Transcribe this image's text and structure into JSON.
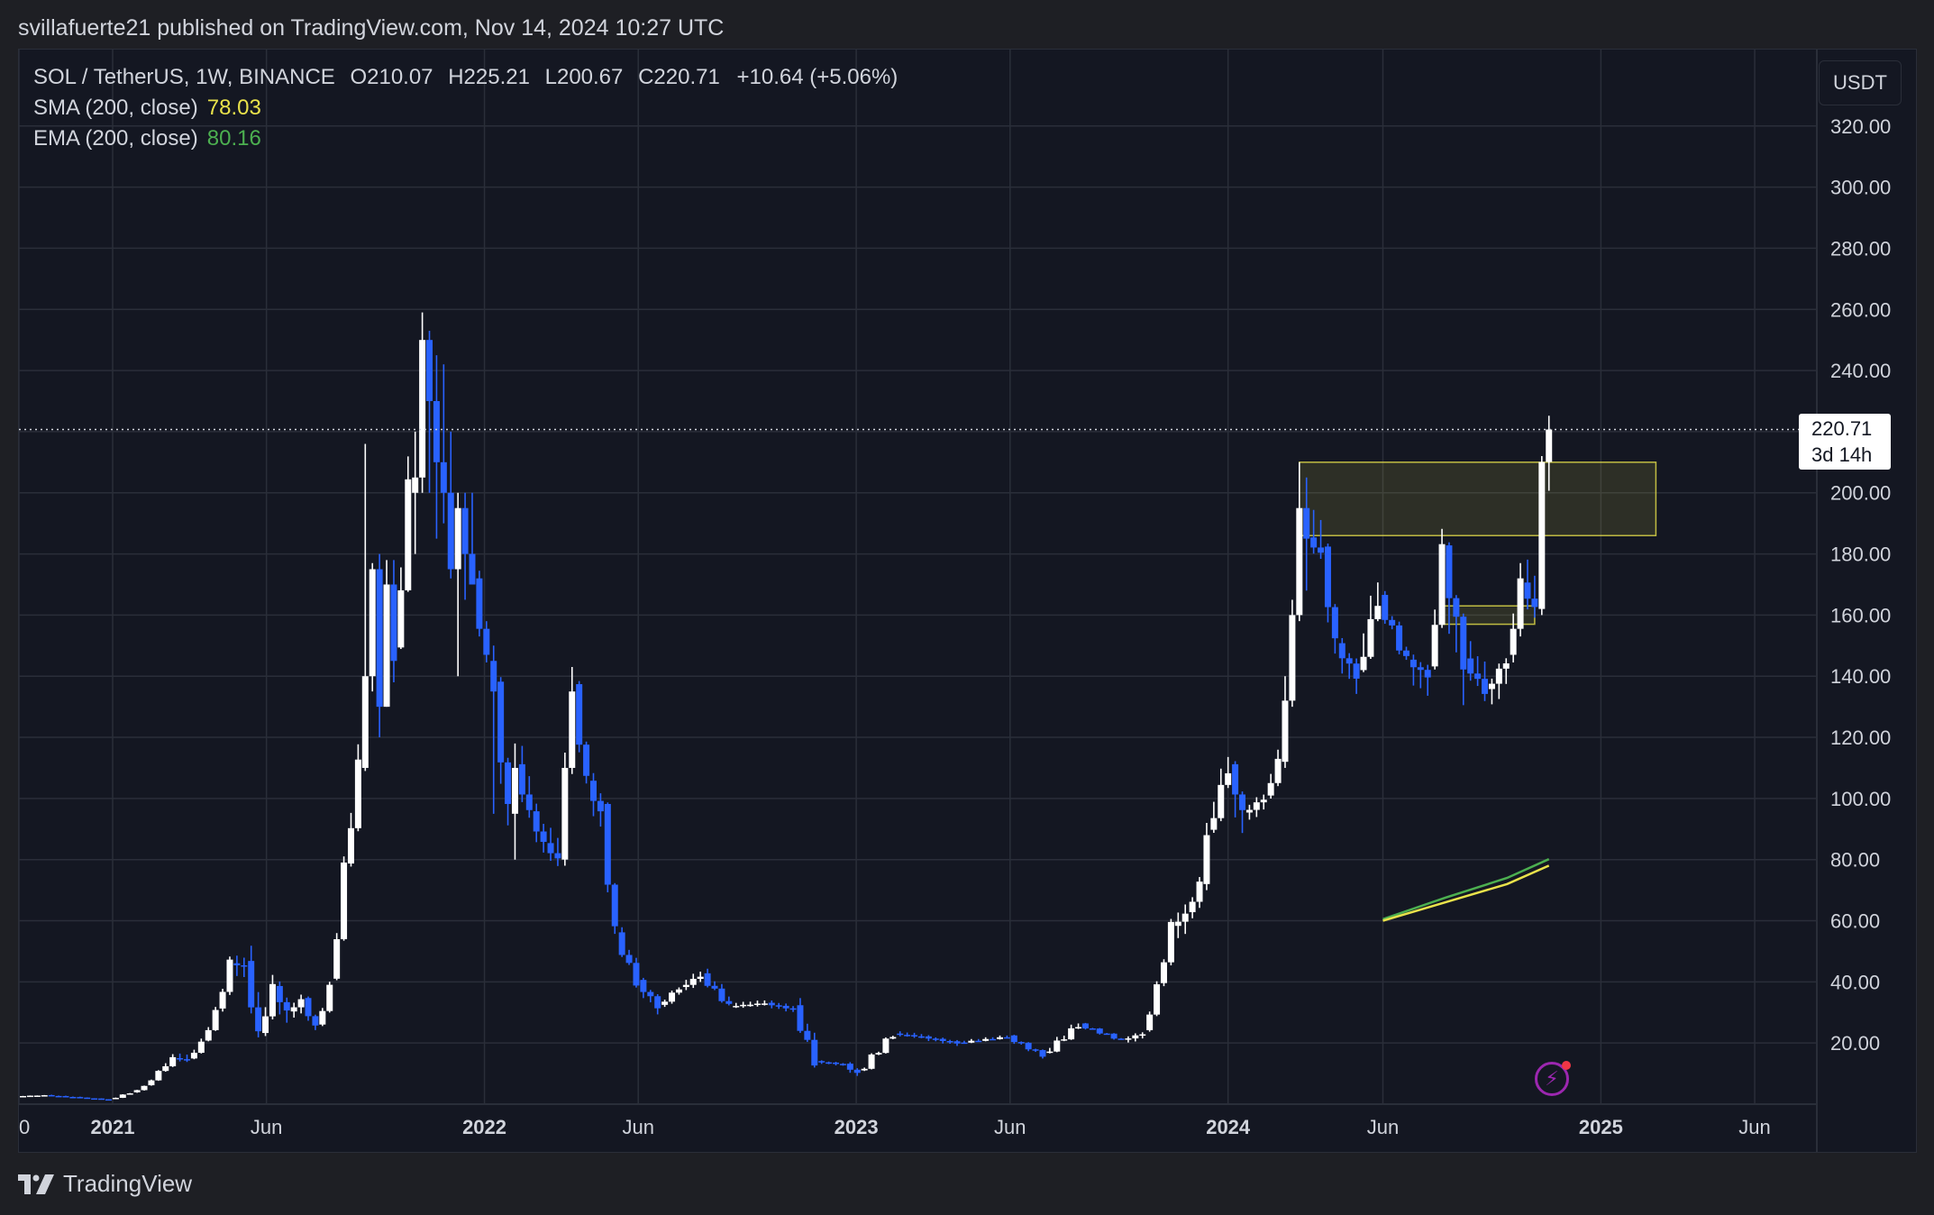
{
  "header": {
    "publisher_line": "svillafuerte21 published on TradingView.com, Nov 14, 2024 10:27 UTC"
  },
  "legend": {
    "symbol": "SOL / TetherUS, 1W, BINANCE",
    "open": "O210.07",
    "high": "H225.21",
    "low": "L200.67",
    "close": "C220.71",
    "change": "+10.64 (+5.06%)",
    "sma_label": "SMA (200, close)",
    "sma_value": "78.03",
    "ema_label": "EMA (200, close)",
    "ema_value": "80.16"
  },
  "currency_button": "USDT",
  "last_price": {
    "price": "220.71",
    "countdown": "3d 14h"
  },
  "footer": {
    "brand": "TradingView"
  },
  "colors": {
    "background": "#141722",
    "grid": "#2a2e39",
    "up_candle": "#ffffff",
    "down_candle": "#2962ff",
    "sma": "#e9e24b",
    "ema": "#4caf50",
    "zone": "#e9e24b",
    "price_line": "#d1d4dc"
  },
  "chart_data": {
    "type": "candlestick",
    "symbol": "SOL / TetherUS",
    "interval": "1W",
    "exchange": "BINANCE",
    "y_axis": {
      "unit": "USDT",
      "min": 0,
      "max": 345,
      "ticks": [
        20,
        40,
        60,
        80,
        100,
        120,
        140,
        160,
        180,
        200,
        220,
        240,
        260,
        280,
        300,
        320
      ],
      "tick_labels": [
        "20.00",
        "40.00",
        "60.00",
        "80.00",
        "100.00",
        "120.00",
        "140.00",
        "160.00",
        "180.00",
        "200.00",
        "220.00",
        "240.00",
        "260.00",
        "280.00",
        "300.00",
        "320.00"
      ]
    },
    "x_axis": {
      "start": "2020-10-01",
      "end": "2025-08-01",
      "ticks": [
        {
          "date": "2020-10-01",
          "label": "0"
        },
        {
          "date": "2021-01-01",
          "label": "2021"
        },
        {
          "date": "2021-06-01",
          "label": "Jun"
        },
        {
          "date": "2022-01-01",
          "label": "2022"
        },
        {
          "date": "2022-06-01",
          "label": "Jun"
        },
        {
          "date": "2023-01-01",
          "label": "2023"
        },
        {
          "date": "2023-06-01",
          "label": "Jun"
        },
        {
          "date": "2024-01-01",
          "label": "2024"
        },
        {
          "date": "2024-06-01",
          "label": "Jun"
        },
        {
          "date": "2025-01-01",
          "label": "2025"
        },
        {
          "date": "2025-06-01",
          "label": "Jun"
        }
      ]
    },
    "candles_weekly_close": [
      [
        "2020-10-05",
        2.6,
        3.1,
        2.3,
        2.9
      ],
      [
        "2020-11-02",
        2.9,
        3.5,
        2.0,
        2.1
      ],
      [
        "2020-12-07",
        2.1,
        2.2,
        1.4,
        1.5
      ],
      [
        "2021-01-04",
        1.5,
        4.0,
        1.4,
        3.7
      ],
      [
        "2021-01-25",
        3.7,
        6.0,
        3.4,
        5.8
      ],
      [
        "2021-02-08",
        5.8,
        11.0,
        5.5,
        10.5
      ],
      [
        "2021-02-22",
        10.5,
        17.0,
        10.0,
        15.0
      ],
      [
        "2021-03-08",
        15.0,
        18.0,
        13.0,
        14.5
      ],
      [
        "2021-03-22",
        14.5,
        22.0,
        14.0,
        20.0
      ],
      [
        "2021-04-05",
        20.0,
        32.0,
        19.5,
        30.0
      ],
      [
        "2021-04-19",
        30.0,
        48.0,
        28.0,
        46.0
      ],
      [
        "2021-05-03",
        46.0,
        51.0,
        38.0,
        45.0
      ],
      [
        "2021-05-17",
        45.0,
        55.0,
        18.0,
        22.0
      ],
      [
        "2021-05-31",
        22.0,
        44.0,
        20.0,
        38.0
      ],
      [
        "2021-06-14",
        38.0,
        41.0,
        22.0,
        30.0
      ],
      [
        "2021-06-28",
        30.0,
        37.0,
        26.0,
        34.0
      ],
      [
        "2021-07-12",
        34.0,
        35.0,
        22.0,
        25.0
      ],
      [
        "2021-07-26",
        25.0,
        40.0,
        24.0,
        38.0
      ],
      [
        "2021-08-09",
        38.0,
        80.0,
        37.0,
        76.0
      ],
      [
        "2021-08-23",
        76.0,
        120.0,
        74.0,
        110.0
      ],
      [
        "2021-09-06",
        110.0,
        216.0,
        109.0,
        140.0
      ],
      [
        "2021-09-13",
        140.0,
        177.0,
        135.0,
        175.0
      ],
      [
        "2021-09-20",
        175.0,
        180.0,
        120.0,
        130.0
      ],
      [
        "2021-09-27",
        130.0,
        178.0,
        130.0,
        170.0
      ],
      [
        "2021-10-04",
        170.0,
        178.0,
        138.0,
        145.0
      ],
      [
        "2021-10-11",
        145.0,
        215.0,
        144.0,
        200.0
      ],
      [
        "2021-10-25",
        200.0,
        220.0,
        180.0,
        205.0
      ],
      [
        "2021-11-01",
        205.0,
        259.0,
        200.0,
        250.0
      ],
      [
        "2021-11-08",
        250.0,
        253.0,
        200.0,
        230.0
      ],
      [
        "2021-11-15",
        230.0,
        245.0,
        185.0,
        210.0
      ],
      [
        "2021-11-22",
        210.0,
        242.0,
        190.0,
        200.0
      ],
      [
        "2021-11-29",
        200.0,
        220.0,
        172.0,
        175.0
      ],
      [
        "2021-12-06",
        175.0,
        200.0,
        140.0,
        195.0
      ],
      [
        "2021-12-13",
        195.0,
        200.0,
        165.0,
        180.0
      ],
      [
        "2021-12-20",
        180.0,
        200.0,
        170.0,
        170.0
      ],
      [
        "2021-12-27",
        170.0,
        175.0,
        140.0,
        145.0
      ],
      [
        "2022-01-10",
        145.0,
        150.0,
        95.0,
        135.0
      ],
      [
        "2022-01-17",
        135.0,
        138.0,
        81.0,
        95.0
      ],
      [
        "2022-01-31",
        95.0,
        118.0,
        80.0,
        110.0
      ],
      [
        "2022-02-07",
        110.0,
        122.0,
        90.0,
        95.0
      ],
      [
        "2022-02-21",
        95.0,
        100.0,
        78.0,
        85.0
      ],
      [
        "2022-03-07",
        85.0,
        95.0,
        75.0,
        80.0
      ],
      [
        "2022-03-21",
        80.0,
        115.0,
        78.0,
        110.0
      ],
      [
        "2022-03-28",
        110.0,
        143.0,
        108.0,
        135.0
      ],
      [
        "2022-04-04",
        135.0,
        137.0,
        100.0,
        105.0
      ],
      [
        "2022-04-18",
        105.0,
        110.0,
        85.0,
        95.0
      ],
      [
        "2022-05-02",
        95.0,
        96.0,
        50.0,
        55.0
      ],
      [
        "2022-05-16",
        55.0,
        60.0,
        38.0,
        40.0
      ],
      [
        "2022-06-06",
        40.0,
        42.0,
        26.0,
        32.0
      ],
      [
        "2022-06-27",
        32.0,
        40.0,
        30.0,
        38.0
      ],
      [
        "2022-07-18",
        38.0,
        47.0,
        35.0,
        42.0
      ],
      [
        "2022-08-08",
        42.0,
        48.0,
        30.0,
        32.0
      ],
      [
        "2022-09-05",
        32.0,
        38.0,
        29.0,
        33.0
      ],
      [
        "2022-10-10",
        33.0,
        36.0,
        27.0,
        31.0
      ],
      [
        "2022-11-07",
        31.0,
        38.0,
        12.0,
        14.0
      ],
      [
        "2022-11-28",
        14.0,
        15.0,
        11.0,
        13.0
      ],
      [
        "2022-12-26",
        13.0,
        14.0,
        8.0,
        10.0
      ],
      [
        "2023-01-09",
        10.0,
        25.0,
        9.0,
        23.0
      ],
      [
        "2023-02-13",
        23.0,
        26.0,
        20.0,
        22.0
      ],
      [
        "2023-03-13",
        22.0,
        24.0,
        16.0,
        20.0
      ],
      [
        "2023-04-17",
        20.0,
        26.0,
        19.0,
        22.0
      ],
      [
        "2023-06-05",
        22.0,
        23.0,
        13.0,
        16.0
      ],
      [
        "2023-07-10",
        16.0,
        32.0,
        15.0,
        26.0
      ],
      [
        "2023-08-14",
        26.0,
        27.0,
        19.0,
        21.0
      ],
      [
        "2023-09-25",
        21.0,
        25.0,
        18.0,
        23.0
      ],
      [
        "2023-10-16",
        23.0,
        40.0,
        22.0,
        38.0
      ],
      [
        "2023-10-30",
        38.0,
        60.0,
        36.0,
        58.0
      ],
      [
        "2023-11-13",
        58.0,
        68.0,
        50.0,
        62.0
      ],
      [
        "2023-11-27",
        62.0,
        75.0,
        58.0,
        72.0
      ],
      [
        "2023-12-11",
        72.0,
        92.0,
        70.0,
        88.0
      ],
      [
        "2023-12-18",
        88.0,
        126.0,
        85.0,
        110.0
      ],
      [
        "2024-01-08",
        110.0,
        112.0,
        80.0,
        95.0
      ],
      [
        "2024-01-22",
        95.0,
        105.0,
        88.0,
        100.0
      ],
      [
        "2024-02-12",
        100.0,
        118.0,
        98.0,
        112.0
      ],
      [
        "2024-02-26",
        112.0,
        140.0,
        110.0,
        132.0
      ],
      [
        "2024-03-04",
        132.0,
        165.0,
        130.0,
        160.0
      ],
      [
        "2024-03-11",
        160.0,
        210.0,
        158.0,
        195.0
      ],
      [
        "2024-03-18",
        195.0,
        205.0,
        168.0,
        185.0
      ],
      [
        "2024-03-25",
        185.0,
        203.0,
        176.0,
        180.0
      ],
      [
        "2024-04-08",
        180.0,
        182.0,
        140.0,
        150.0
      ],
      [
        "2024-04-22",
        150.0,
        155.0,
        125.0,
        140.0
      ],
      [
        "2024-05-13",
        140.0,
        188.0,
        138.0,
        165.0
      ],
      [
        "2024-06-03",
        165.0,
        170.0,
        140.0,
        145.0
      ],
      [
        "2024-07-01",
        145.0,
        150.0,
        122.0,
        140.0
      ],
      [
        "2024-07-22",
        140.0,
        190.0,
        138.0,
        180.0
      ],
      [
        "2024-08-05",
        180.0,
        183.0,
        110.0,
        145.0
      ],
      [
        "2024-08-26",
        145.0,
        162.0,
        128.0,
        135.0
      ],
      [
        "2024-09-16",
        135.0,
        150.0,
        120.0,
        145.0
      ],
      [
        "2024-10-07",
        145.0,
        180.0,
        140.0,
        170.0
      ],
      [
        "2024-10-21",
        170.0,
        185.0,
        155.0,
        162.0
      ],
      [
        "2024-11-04",
        162.0,
        212.0,
        160.0,
        210.07
      ],
      [
        "2024-11-11",
        210.07,
        225.21,
        200.67,
        220.71
      ]
    ],
    "sma_200": {
      "name": "SMA (200, close)",
      "points": [
        [
          "2024-06-01",
          60.0
        ],
        [
          "2024-08-01",
          66.0
        ],
        [
          "2024-10-01",
          72.0
        ],
        [
          "2024-11-11",
          78.03
        ]
      ]
    },
    "ema_200": {
      "name": "EMA (200, close)",
      "points": [
        [
          "2024-06-01",
          60.5
        ],
        [
          "2024-08-01",
          67.5
        ],
        [
          "2024-10-01",
          74.0
        ],
        [
          "2024-11-11",
          80.16
        ]
      ]
    },
    "zones": [
      {
        "from": "2024-03-11",
        "to": "2025-02-24",
        "low": 186.0,
        "high": 210.0
      },
      {
        "from": "2024-07-29",
        "to": "2024-10-28",
        "low": 157.0,
        "high": 163.0
      }
    ],
    "last_price_line": 220.71,
    "grid": true
  }
}
